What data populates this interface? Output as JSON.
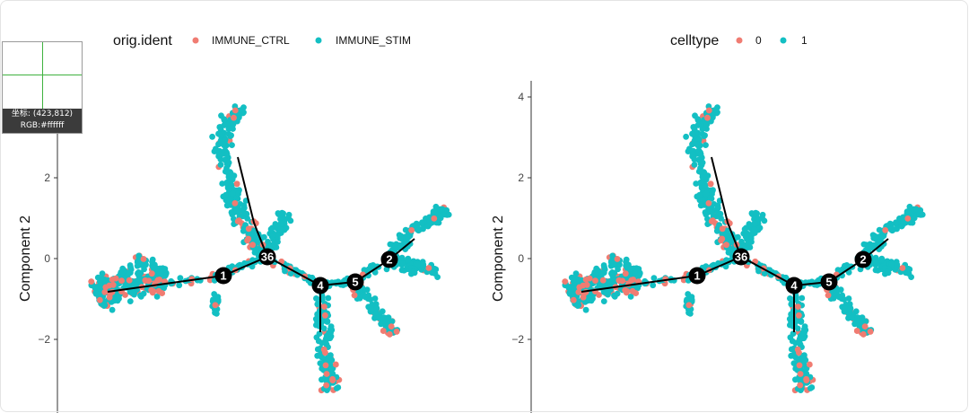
{
  "colors": {
    "ctrl": "#F07C72",
    "stim": "#13BFC3",
    "node": "#000000",
    "tree": "#000000"
  },
  "magnifier": {
    "coord_text": "坐标: (423,812)",
    "rgb_text": "RGB:#ffffff"
  },
  "chart_data": [
    {
      "type": "scatter",
      "ylabel": "Component 2",
      "xlabel": "",
      "yticks": [
        -2,
        0,
        2
      ],
      "ylim": [
        -3.5,
        4.4
      ],
      "legend": {
        "title": "orig.ident",
        "placement": "top",
        "entries": [
          "IMMUNE_CTRL",
          "IMMUNE_STIM"
        ]
      },
      "nodes": [
        "1",
        "36",
        "4",
        "5",
        "2"
      ]
    },
    {
      "type": "scatter",
      "ylabel": "Component 2",
      "xlabel": "",
      "yticks": [
        -2,
        0,
        2,
        4
      ],
      "ylim": [
        -3.5,
        4.4
      ],
      "legend": {
        "title": "celltype",
        "placement": "top",
        "entries": [
          "0",
          "1"
        ]
      },
      "nodes": [
        "1",
        "36",
        "4",
        "5",
        "2"
      ]
    }
  ]
}
